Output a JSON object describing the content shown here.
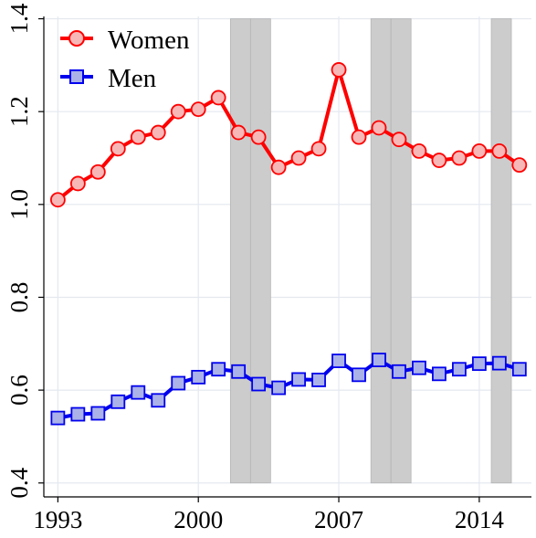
{
  "chart_data": {
    "type": "line",
    "x": [
      1993,
      1994,
      1995,
      1996,
      1997,
      1998,
      1999,
      2000,
      2001,
      2002,
      2003,
      2004,
      2005,
      2006,
      2007,
      2008,
      2009,
      2010,
      2011,
      2012,
      2013,
      2014,
      2015,
      2016
    ],
    "series": [
      {
        "name": "Women",
        "color": "#ff0000",
        "marker": "circle",
        "marker_fill": "#f7b7b7",
        "values": [
          1.01,
          1.045,
          1.07,
          1.12,
          1.145,
          1.155,
          1.2,
          1.205,
          1.23,
          1.155,
          1.145,
          1.08,
          1.1,
          1.12,
          1.29,
          1.145,
          1.165,
          1.14,
          1.115,
          1.095,
          1.1,
          1.115,
          1.115,
          1.085
        ]
      },
      {
        "name": "Men",
        "color": "#0000ee",
        "marker": "square",
        "marker_fill": "#aab2e8",
        "values": [
          0.54,
          0.548,
          0.55,
          0.575,
          0.595,
          0.578,
          0.615,
          0.628,
          0.645,
          0.64,
          0.613,
          0.605,
          0.623,
          0.622,
          0.663,
          0.633,
          0.665,
          0.64,
          0.648,
          0.635,
          0.645,
          0.657,
          0.658,
          0.645
        ]
      }
    ],
    "recession_bands": [
      [
        2001.6,
        2002.6
      ],
      [
        2002.6,
        2003.6
      ],
      [
        2008.6,
        2009.6
      ],
      [
        2009.6,
        2010.6
      ],
      [
        2014.6,
        2015.6
      ]
    ],
    "recession_color": "#cccccc",
    "xticks": [
      1993,
      2000,
      2007,
      2014
    ],
    "xtick_labels": [
      "1993",
      "2000",
      "2007",
      "2014"
    ],
    "yticks": [
      0.4,
      0.6,
      0.8,
      1.0,
      1.2,
      1.4
    ],
    "ytick_labels": [
      "0.4",
      "0.6",
      "0.8",
      "1.0",
      "1.2",
      "1.4"
    ],
    "xlim": [
      1992.3,
      2016.6
    ],
    "ylim": [
      0.37,
      1.405
    ],
    "grid": true,
    "legend_position": "top-left",
    "title": "",
    "xlabel": "",
    "ylabel": ""
  }
}
